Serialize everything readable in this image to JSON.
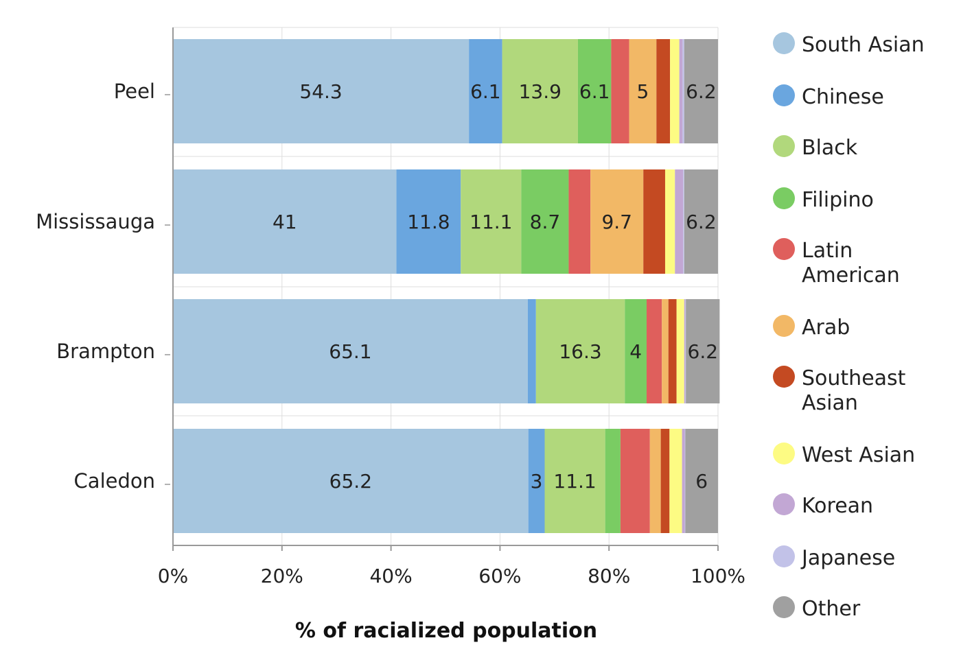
{
  "chart_data": {
    "type": "bar",
    "orientation": "horizontal",
    "stacked": "percent",
    "title": "",
    "xlabel": "% of racialized population",
    "ylabel": "",
    "xlim": [
      0,
      100
    ],
    "xticks": [
      0,
      20,
      40,
      60,
      80,
      100
    ],
    "xtick_labels": [
      "0%",
      "20%",
      "40%",
      "60%",
      "80%",
      "100%"
    ],
    "grid": true,
    "legend_position": "right",
    "categories": [
      "Peel",
      "Mississauga",
      "Brampton",
      "Caledon"
    ],
    "series": [
      {
        "name": "South Asian",
        "color": "#a6c6df",
        "values": [
          54.3,
          41,
          65.1,
          65.2
        ]
      },
      {
        "name": "Chinese",
        "color": "#6aa6df",
        "values": [
          6.1,
          11.8,
          1.5,
          3
        ]
      },
      {
        "name": "Black",
        "color": "#b1d87c",
        "values": [
          13.9,
          11.1,
          16.3,
          11.1
        ]
      },
      {
        "name": "Filipino",
        "color": "#7acc63",
        "values": [
          6.1,
          8.7,
          4,
          2.8
        ]
      },
      {
        "name": "Latin American",
        "color": "#df5f5c",
        "values": [
          3.3,
          4,
          2.8,
          5.4
        ]
      },
      {
        "name": "Arab",
        "color": "#f2b866",
        "values": [
          5,
          9.7,
          1.2,
          2
        ]
      },
      {
        "name": "Southeast Asian",
        "color": "#c44a22",
        "values": [
          2.5,
          4,
          1.5,
          1.6
        ]
      },
      {
        "name": "West Asian",
        "color": "#fdfb83",
        "values": [
          1.7,
          1.8,
          1.4,
          2.3
        ]
      },
      {
        "name": "Korean",
        "color": "#c2a7d4",
        "values": [
          0.6,
          1.5,
          0.2,
          0.5
        ]
      },
      {
        "name": "Japanese",
        "color": "#c2c2e8",
        "values": [
          0.3,
          0.2,
          0.1,
          0.1
        ]
      },
      {
        "name": "Other",
        "color": "#a0a0a0",
        "values": [
          6.2,
          6.2,
          6.2,
          6
        ]
      }
    ],
    "data_labels": [
      [
        "54.3",
        "6.1",
        "13.9",
        "6.1",
        "",
        "5",
        "",
        "",
        "",
        "",
        "6.2"
      ],
      [
        "41",
        "11.8",
        "11.1",
        "8.7",
        "",
        "9.7",
        "",
        "",
        "",
        "",
        "6.2"
      ],
      [
        "65.1",
        "",
        "16.3",
        "4",
        "",
        "",
        "",
        "",
        "",
        "",
        "6.2"
      ],
      [
        "65.2",
        "3",
        "11.1",
        "",
        "",
        "",
        "",
        "",
        "",
        "",
        "6"
      ]
    ]
  }
}
